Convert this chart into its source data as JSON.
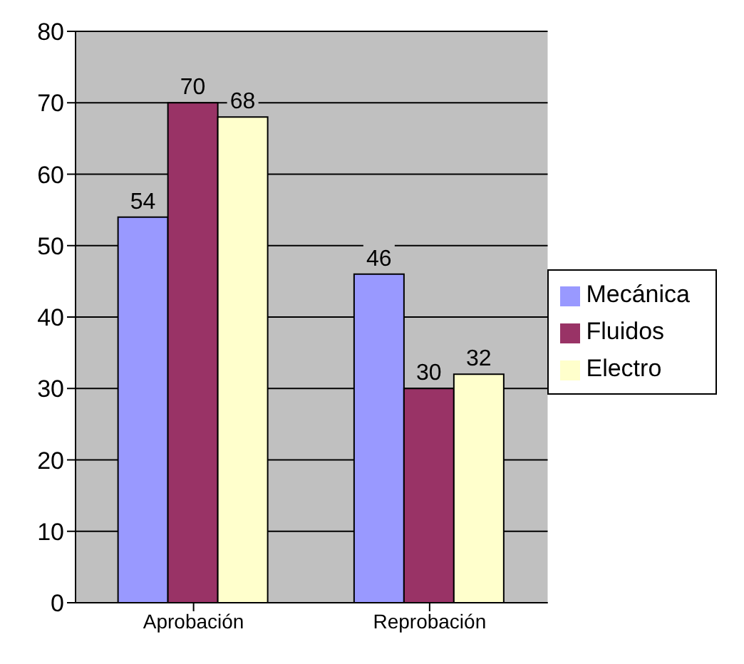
{
  "chart_data": {
    "type": "bar",
    "categories": [
      "Aprobación",
      "Reprobación"
    ],
    "series": [
      {
        "name": "Mecánica",
        "color": "#9999ff",
        "values": [
          54,
          46
        ]
      },
      {
        "name": "Fluidos",
        "color": "#993366",
        "values": [
          70,
          30
        ]
      },
      {
        "name": "Electro",
        "color": "#ffffcc",
        "values": [
          68,
          32
        ]
      }
    ],
    "ylim": [
      0,
      80
    ],
    "yticks": [
      0,
      10,
      20,
      30,
      40,
      50,
      60,
      70,
      80
    ],
    "grid": "y",
    "legend": "right",
    "data_labels": true
  }
}
